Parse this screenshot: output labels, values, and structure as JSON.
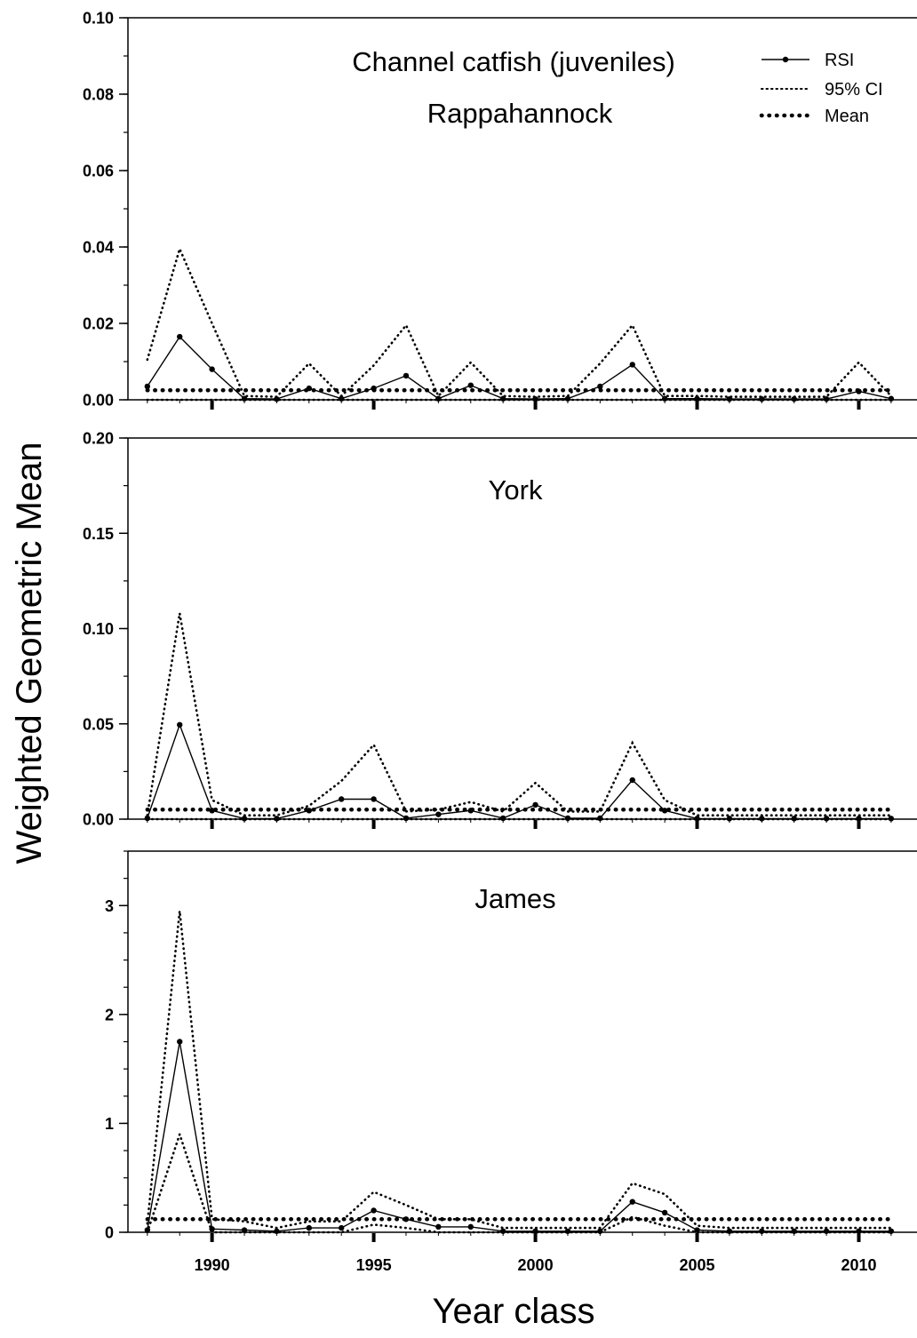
{
  "chart_data": {
    "type": "line",
    "xlabel": "Year class",
    "ylabel": "Weighted Geometric Mean",
    "xlim": [
      1987.4,
      2011.8
    ],
    "x_ticks": [
      1990,
      1995,
      2000,
      2005,
      2010
    ],
    "x": [
      1988,
      1989,
      1990,
      1991,
      1992,
      1993,
      1994,
      1995,
      1996,
      1997,
      1998,
      1999,
      2000,
      2001,
      2002,
      2003,
      2004,
      2005,
      2006,
      2007,
      2008,
      2009,
      2010,
      2011
    ],
    "legend": {
      "placement": "top-right",
      "items": [
        {
          "key": "rsi",
          "label": "RSI",
          "style": "solid-with-dots"
        },
        {
          "key": "ci",
          "label": "95% CI",
          "style": "fine-dotted"
        },
        {
          "key": "mean",
          "label": "Mean",
          "style": "heavy-dotted"
        }
      ]
    },
    "panels": [
      {
        "id": "rappahannock",
        "title": "Channel catfish (juveniles)",
        "subtitle": "Rappahannock",
        "ylim": [
          0,
          0.1
        ],
        "y_ticks": [
          0.0,
          0.02,
          0.04,
          0.06,
          0.08,
          0.1
        ],
        "y_tick_labels": [
          "0.00",
          "0.02",
          "0.04",
          "0.06",
          "0.08",
          "0.10"
        ],
        "y_minor_step": 0.01,
        "mean": 0.0025,
        "rsi": [
          0.0035,
          0.0165,
          0.008,
          0.0003,
          0.0002,
          0.003,
          0.0003,
          0.003,
          0.0063,
          0.0003,
          0.0038,
          0.0003,
          0.0002,
          0.0003,
          0.0035,
          0.0092,
          0.0003,
          0.0003,
          0.0002,
          0.0002,
          0.0002,
          0.0002,
          0.0022,
          0.0003
        ],
        "ci_upper": [
          0.0105,
          0.0395,
          0.02,
          0.001,
          0.0008,
          0.0095,
          0.001,
          0.009,
          0.0195,
          0.001,
          0.0098,
          0.001,
          0.0008,
          0.001,
          0.0095,
          0.0195,
          0.001,
          0.001,
          0.0008,
          0.0008,
          0.0008,
          0.0008,
          0.0098,
          0.001
        ],
        "ci_lower": [
          0.0,
          0.0,
          0.0,
          0.0,
          0.0,
          0.0,
          0.0,
          0.0,
          0.0,
          0.0,
          0.0,
          0.0,
          0.0,
          0.0,
          0.0,
          0.0,
          0.0,
          0.0,
          0.0,
          0.0,
          0.0,
          0.0,
          0.0,
          0.0
        ]
      },
      {
        "id": "york",
        "title": "",
        "subtitle": "York",
        "ylim": [
          0,
          0.2
        ],
        "y_ticks": [
          0.0,
          0.05,
          0.1,
          0.15,
          0.2
        ],
        "y_tick_labels": [
          "0.00",
          "0.05",
          "0.10",
          "0.15",
          "0.20"
        ],
        "y_minor_step": 0.025,
        "mean": 0.005,
        "rsi": [
          0.0005,
          0.0495,
          0.0045,
          0.0003,
          0.0003,
          0.0045,
          0.0105,
          0.0105,
          0.0005,
          0.0025,
          0.0045,
          0.0005,
          0.0075,
          0.0005,
          0.0005,
          0.0205,
          0.0045,
          0.0003,
          0.0003,
          0.0003,
          0.0003,
          0.0003,
          0.0003,
          0.0003
        ],
        "ci_upper": [
          0.002,
          0.108,
          0.01,
          0.002,
          0.002,
          0.007,
          0.02,
          0.039,
          0.004,
          0.005,
          0.009,
          0.004,
          0.019,
          0.004,
          0.004,
          0.04,
          0.01,
          0.002,
          0.002,
          0.002,
          0.002,
          0.002,
          0.002,
          0.002
        ],
        "ci_lower": [
          0.0,
          0.0,
          0.0,
          0.0,
          0.0,
          0.0,
          0.0,
          0.0,
          0.0,
          0.0,
          0.0,
          0.0,
          0.0,
          0.0,
          0.0,
          0.0,
          0.0,
          0.0,
          0.0,
          0.0,
          0.0,
          0.0,
          0.0,
          0.0
        ]
      },
      {
        "id": "james",
        "title": "",
        "subtitle": "James",
        "ylim": [
          0,
          3.5
        ],
        "y_ticks": [
          0,
          1,
          2,
          3
        ],
        "y_tick_labels": [
          "0",
          "1",
          "2",
          "3"
        ],
        "y_minor_step": 0.25,
        "mean": 0.12,
        "rsi": [
          0.02,
          1.75,
          0.03,
          0.02,
          0.01,
          0.04,
          0.04,
          0.2,
          0.12,
          0.05,
          0.05,
          0.01,
          0.01,
          0.01,
          0.01,
          0.28,
          0.18,
          0.02,
          0.01,
          0.01,
          0.01,
          0.01,
          0.01,
          0.01
        ],
        "ci_upper": [
          0.08,
          2.95,
          0.12,
          0.1,
          0.04,
          0.1,
          0.1,
          0.37,
          0.25,
          0.12,
          0.12,
          0.04,
          0.04,
          0.04,
          0.04,
          0.45,
          0.35,
          0.06,
          0.04,
          0.04,
          0.04,
          0.04,
          0.04,
          0.04
        ],
        "ci_lower": [
          0.0,
          0.9,
          0.0,
          0.0,
          0.0,
          0.0,
          0.0,
          0.07,
          0.04,
          0.0,
          0.0,
          0.0,
          0.0,
          0.0,
          0.0,
          0.14,
          0.06,
          0.0,
          0.0,
          0.0,
          0.0,
          0.0,
          0.0,
          0.0
        ]
      }
    ]
  }
}
